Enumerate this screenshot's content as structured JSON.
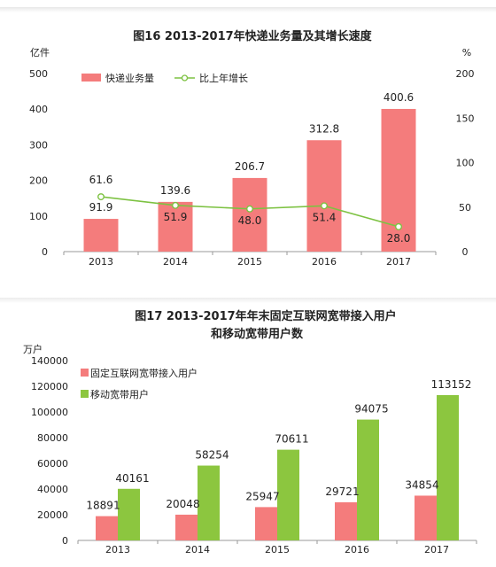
{
  "chart_data": [
    {
      "type": "bar",
      "title": "图16   2013-2017年快递业务量及其增长速度",
      "y_unit_left": "亿件",
      "y_unit_right": "%",
      "categories": [
        "2013",
        "2014",
        "2015",
        "2016",
        "2017"
      ],
      "series": [
        {
          "name": "快递业务量",
          "type": "bar",
          "axis": "left",
          "color": "#f47c7c",
          "values": [
            91.9,
            139.6,
            206.7,
            312.8,
            400.6
          ]
        },
        {
          "name": "比上年增长",
          "type": "line",
          "axis": "right",
          "color": "#7dc242",
          "values": [
            61.6,
            51.9,
            48.0,
            51.4,
            28.0
          ]
        }
      ],
      "ylim_left": [
        0,
        500
      ],
      "ylim_right": [
        0,
        200
      ],
      "yticks_left": [
        "0",
        "100",
        "200",
        "300",
        "400",
        "500"
      ],
      "yticks_right": [
        "0",
        "50",
        "100",
        "150",
        "200"
      ],
      "bar_labels": [
        "91.9",
        "139.6",
        "206.7",
        "312.8",
        "400.6"
      ],
      "line_labels": [
        "61.6",
        "51.9",
        "48.0",
        "51.4",
        "28.0"
      ],
      "legend_position": "top-left",
      "grid": false
    },
    {
      "type": "bar",
      "title_line1": "图17   2013-2017年年末固定互联网宽带接入用户",
      "title_line2": "和移动宽带用户数",
      "y_unit": "万户",
      "categories": [
        "2013",
        "2014",
        "2015",
        "2016",
        "2017"
      ],
      "series": [
        {
          "name": "固定互联网宽带接入用户",
          "color": "#f47c7c",
          "values": [
            18891,
            20048,
            25947,
            29721,
            34854
          ]
        },
        {
          "name": "移动宽带用户",
          "color": "#8cc63f",
          "values": [
            40161,
            58254,
            70611,
            94075,
            113152
          ]
        }
      ],
      "ylim": [
        0,
        140000
      ],
      "yticks": [
        "0",
        "20000",
        "40000",
        "60000",
        "80000",
        "100000",
        "120000",
        "140000"
      ],
      "labels_series1": [
        "18891",
        "20048",
        "25947",
        "29721",
        "34854"
      ],
      "labels_series2": [
        "40161",
        "58254",
        "70611",
        "94075",
        "113152"
      ],
      "legend_position": "top-left",
      "grid": false
    }
  ]
}
